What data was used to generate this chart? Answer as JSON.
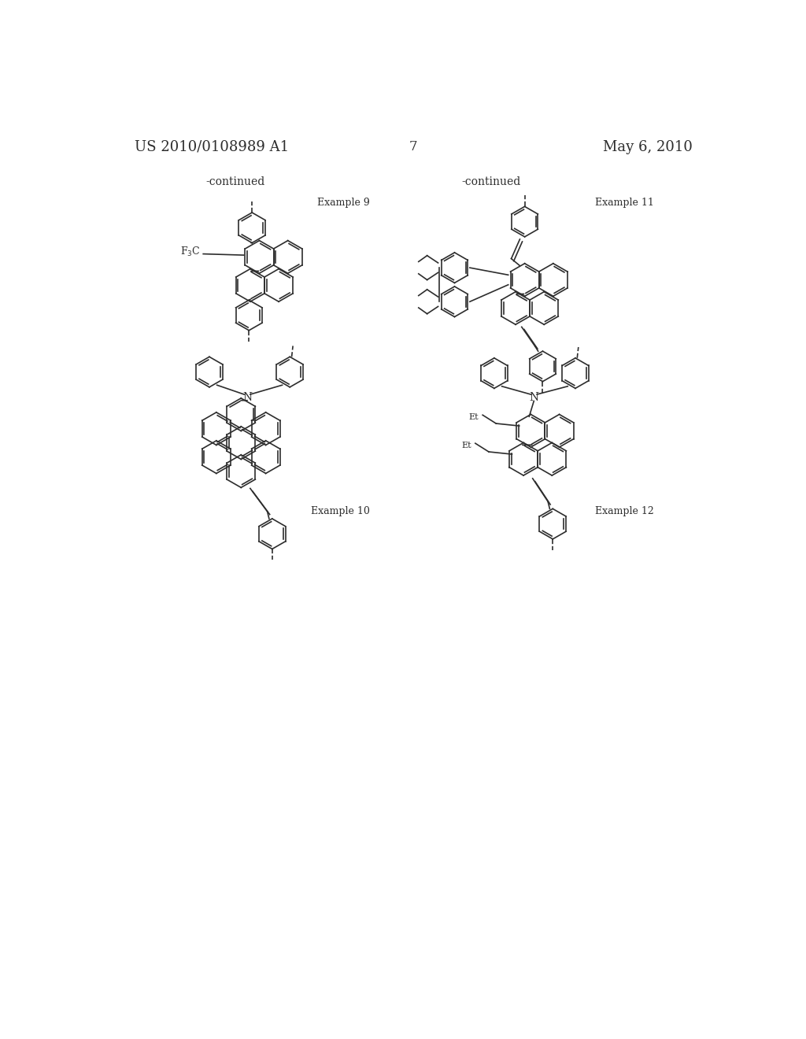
{
  "background_color": "#ffffff",
  "line_color": "#2d2d2d",
  "header_left": "US 2010/0108989 A1",
  "header_right": "May 6, 2010",
  "page_num_text": "7",
  "continued_left": "-continued",
  "continued_right": "-continued",
  "example9_label": "Example 9",
  "example10_label": "Example 10",
  "example11_label": "Example 11",
  "example12_label": "Example 12",
  "font_size_header": 13,
  "font_size_page": 12,
  "font_size_label": 9,
  "font_size_continued": 10
}
